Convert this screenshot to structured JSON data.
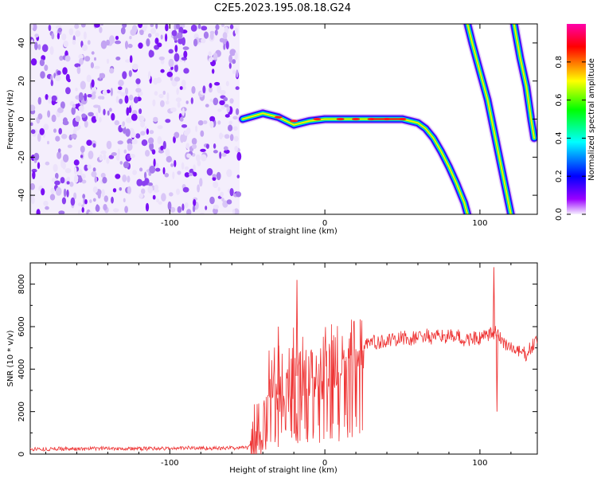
{
  "title": "C2E5.2023.195.08.18.G24",
  "chart_data": [
    {
      "type": "heatmap",
      "xlabel": "Height of straight line (km)",
      "ylabel": "Frequency (Hz)",
      "xlim": [
        -190,
        137
      ],
      "ylim": [
        -50,
        50
      ],
      "xticks": [
        -100,
        0,
        100
      ],
      "yticks": [
        -40,
        -20,
        0,
        20,
        40
      ],
      "colorbar": {
        "label": "Normalized spectral amplitude",
        "range": [
          0,
          1
        ],
        "ticks": [
          0.0,
          0.2,
          0.4,
          0.6,
          0.8
        ],
        "colors": [
          "#f6f0ff",
          "#9a00ff",
          "#0000ff",
          "#00ffff",
          "#00ff00",
          "#ffff00",
          "#ff0000",
          "#ff00aa"
        ]
      },
      "noise_region_x": [
        -190,
        -55
      ],
      "traces": [
        {
          "x": [
            -53,
            -40,
            -30,
            -20,
            -10,
            0,
            10,
            20,
            30,
            40,
            50,
            55,
            60,
            65,
            70,
            75,
            80,
            85,
            90,
            92
          ],
          "y": [
            0,
            3,
            1,
            -3,
            -1,
            0,
            0,
            0,
            0,
            0,
            0,
            -1,
            -2,
            -5,
            -10,
            -17,
            -25,
            -34,
            -44,
            -50
          ]
        },
        {
          "x": [
            92,
            95,
            100,
            105,
            110,
            115,
            120
          ],
          "y": [
            50,
            40,
            25,
            10,
            -10,
            -30,
            -50
          ]
        },
        {
          "x": [
            122,
            126,
            130,
            133,
            135
          ],
          "y": [
            50,
            32,
            17,
            0,
            -10
          ]
        }
      ]
    },
    {
      "type": "line",
      "xlabel": "Height of straight line (km)",
      "ylabel": "SNR (10 * v/v)",
      "xlim": [
        -190,
        137
      ],
      "ylim": [
        0,
        9000
      ],
      "xticks": [
        -100,
        0,
        100
      ],
      "yticks": [
        0,
        2000,
        4000,
        6000,
        8000
      ],
      "color": "#ee3333",
      "x": [
        -190,
        -180,
        -170,
        -160,
        -150,
        -140,
        -130,
        -120,
        -110,
        -100,
        -90,
        -80,
        -70,
        -60,
        -50,
        -45,
        -40,
        -35,
        -30,
        -25,
        -20,
        -15,
        -10,
        -5,
        0,
        5,
        10,
        15,
        20,
        25,
        30,
        35,
        40,
        45,
        50,
        55,
        60,
        65,
        70,
        75,
        80,
        85,
        90,
        95,
        100,
        105,
        110,
        115,
        120,
        125,
        130,
        137
      ],
      "y": [
        250,
        230,
        260,
        240,
        250,
        280,
        260,
        250,
        270,
        260,
        300,
        280,
        270,
        290,
        300,
        800,
        2000,
        3000,
        2800,
        3500,
        3800,
        3500,
        3600,
        3800,
        3900,
        4200,
        4400,
        4700,
        4800,
        5200,
        5300,
        5200,
        5400,
        5300,
        5500,
        5400,
        5500,
        5600,
        5400,
        5600,
        5500,
        5600,
        5300,
        5500,
        5400,
        5600,
        5700,
        5300,
        5000,
        4800,
        4700,
        5400
      ],
      "spikes": [
        {
          "x": -30,
          "y": 6000
        },
        {
          "x": -18,
          "y": 8200
        },
        {
          "x": 109,
          "y": 8800
        },
        {
          "x": 111,
          "y": 2000
        }
      ]
    }
  ]
}
